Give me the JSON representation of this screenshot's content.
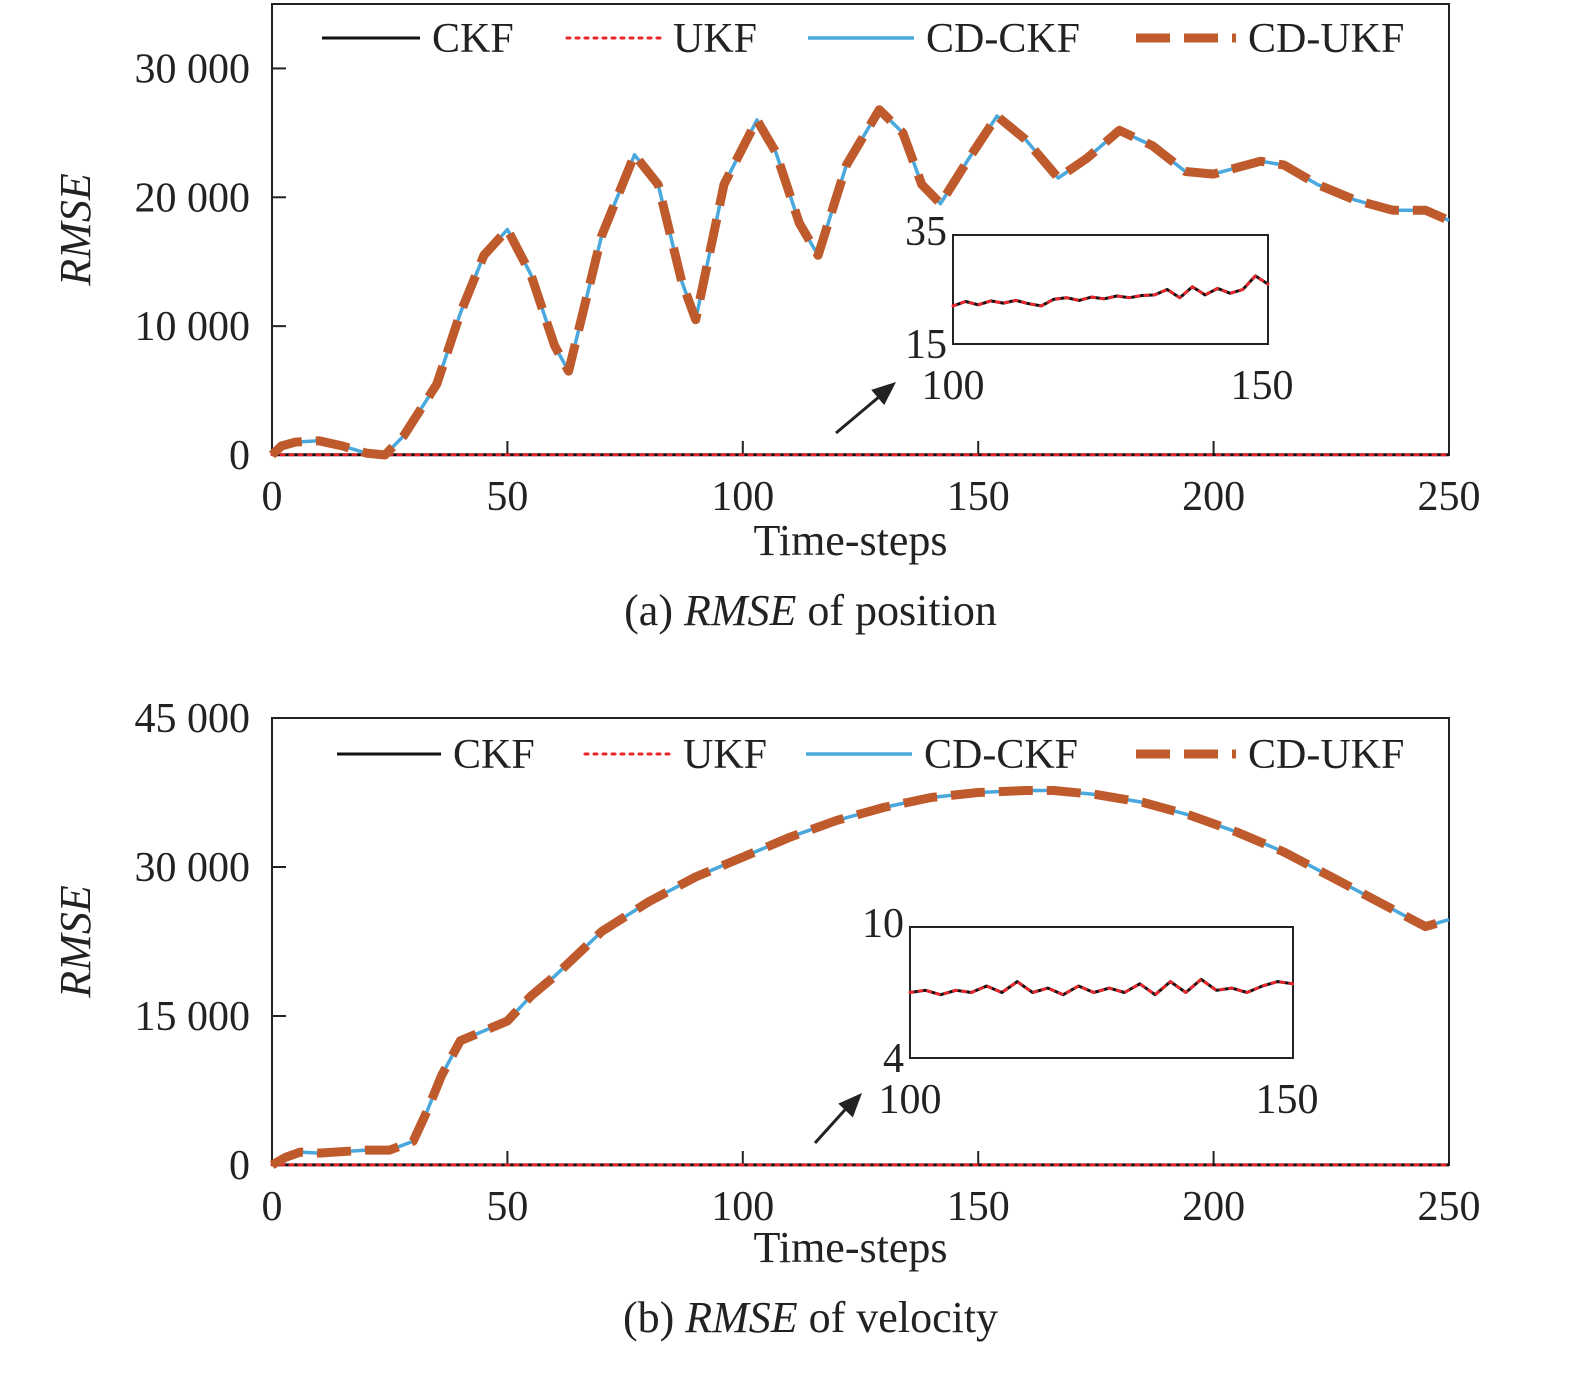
{
  "chart_data": [
    {
      "type": "line",
      "title_prefix": "(a) ",
      "title_italic": "RMSE",
      "title_suffix": " of position",
      "xlabel": "Time-steps",
      "ylabel": "RMSE",
      "xlim": [
        0,
        250
      ],
      "ylim": [
        0,
        35000
      ],
      "xticks": [
        0,
        50,
        100,
        150,
        200,
        250
      ],
      "xtick_labels": [
        "0",
        "50",
        "100",
        "150",
        "200",
        "250"
      ],
      "yticks": [
        0,
        10000,
        20000,
        30000
      ],
      "ytick_labels": [
        "0",
        "10 000",
        "20 000",
        "30 000"
      ],
      "legend": {
        "position": "top",
        "entries": [
          "CKF",
          "UKF",
          "CD-CKF",
          "CD-UKF"
        ]
      },
      "series": [
        {
          "name": "CKF",
          "color": "#111111",
          "style": "solid",
          "x": [
            0,
            50,
            100,
            150,
            200,
            250
          ],
          "y": [
            22,
            22,
            22,
            22,
            22,
            22
          ]
        },
        {
          "name": "UKF",
          "color": "#e8262c",
          "style": "dotted",
          "x": [
            0,
            50,
            100,
            150,
            200,
            250
          ],
          "y": [
            22,
            22,
            22,
            22,
            22,
            22
          ]
        },
        {
          "name": "CD-CKF",
          "color": "#4aa8dc",
          "style": "solid",
          "x": [
            0,
            2,
            5,
            10,
            15,
            20,
            24,
            28,
            35,
            40,
            45,
            50,
            55,
            60,
            63,
            70,
            77,
            82,
            87,
            90,
            96,
            103,
            107,
            112,
            116,
            122,
            129,
            134,
            138,
            142,
            148,
            154,
            160,
            167,
            173,
            180,
            187,
            194,
            200,
            205,
            210,
            215,
            222,
            230,
            238,
            245,
            250
          ],
          "y": [
            0,
            700,
            1000,
            1100,
            700,
            150,
            0,
            1500,
            5500,
            11000,
            15500,
            17500,
            14000,
            8500,
            6500,
            17000,
            23300,
            21000,
            13500,
            10500,
            21000,
            26000,
            23500,
            18000,
            15500,
            22500,
            26800,
            25000,
            21000,
            19500,
            23000,
            26300,
            24500,
            21500,
            23000,
            25200,
            24000,
            22000,
            21800,
            22300,
            22800,
            22500,
            21000,
            19800,
            19000,
            19000,
            18200
          ]
        },
        {
          "name": "CD-UKF",
          "color": "#bf5a2c",
          "style": "dashed",
          "x": [
            0,
            2,
            5,
            10,
            15,
            20,
            24,
            28,
            35,
            40,
            45,
            50,
            55,
            60,
            63,
            70,
            77,
            82,
            87,
            90,
            96,
            103,
            107,
            112,
            116,
            122,
            129,
            134,
            138,
            142,
            148,
            154,
            160,
            167,
            173,
            180,
            187,
            194,
            200,
            205,
            210,
            215,
            222,
            230,
            238,
            245,
            250
          ],
          "y": [
            0,
            700,
            1000,
            1100,
            700,
            150,
            0,
            1500,
            5500,
            11000,
            15500,
            17500,
            14000,
            8500,
            6500,
            17000,
            23300,
            21000,
            13500,
            10500,
            21000,
            26000,
            23500,
            18000,
            15500,
            22500,
            26800,
            25000,
            21000,
            19500,
            23000,
            26300,
            24500,
            21500,
            23000,
            25200,
            24000,
            22000,
            21800,
            22300,
            22800,
            22500,
            21000,
            19800,
            19000,
            19000,
            18200
          ]
        }
      ],
      "inset": {
        "xlim": [
          100,
          150
        ],
        "ylim": [
          15,
          35
        ],
        "xtick_labels": [
          "100",
          "150"
        ],
        "ytick_labels": [
          "15",
          "35"
        ],
        "series": [
          {
            "name": "CKF",
            "color": "#111111",
            "style": "solid",
            "x": [
              100,
              102,
              104,
              106,
              108,
              110,
              112,
              114,
              116,
              118,
              120,
              122,
              124,
              126,
              128,
              130,
              132,
              134,
              136,
              138,
              140,
              142,
              144,
              146,
              148,
              150
            ],
            "y": [
              22.0,
              22.8,
              22.2,
              22.9,
              22.5,
              23.0,
              22.4,
              22.0,
              23.2,
              23.5,
              23.0,
              23.6,
              23.3,
              23.8,
              23.5,
              23.9,
              24.0,
              25.0,
              23.5,
              25.5,
              24.0,
              25.2,
              24.3,
              25.0,
              27.5,
              26.0
            ]
          },
          {
            "name": "UKF",
            "color": "#e8262c",
            "style": "dotted",
            "x": [
              100,
              102,
              104,
              106,
              108,
              110,
              112,
              114,
              116,
              118,
              120,
              122,
              124,
              126,
              128,
              130,
              132,
              134,
              136,
              138,
              140,
              142,
              144,
              146,
              148,
              150
            ],
            "y": [
              22.0,
              22.8,
              22.2,
              22.9,
              22.5,
              23.0,
              22.4,
              22.0,
              23.2,
              23.5,
              23.0,
              23.6,
              23.3,
              23.8,
              23.5,
              23.9,
              24.0,
              25.0,
              23.5,
              25.5,
              24.0,
              25.2,
              24.3,
              25.0,
              27.5,
              26.0
            ]
          }
        ]
      }
    },
    {
      "type": "line",
      "title_prefix": "(b) ",
      "title_italic": "RMSE",
      "title_suffix": " of velocity",
      "xlabel": "Time-steps",
      "ylabel": "RMSE",
      "xlim": [
        0,
        250
      ],
      "ylim": [
        0,
        45000
      ],
      "xticks": [
        0,
        50,
        100,
        150,
        200,
        250
      ],
      "xtick_labels": [
        "0",
        "50",
        "100",
        "150",
        "200",
        "250"
      ],
      "yticks": [
        0,
        15000,
        30000,
        45000
      ],
      "ytick_labels": [
        "0",
        "15 000",
        "30 000",
        "45 000"
      ],
      "legend": {
        "position": "top",
        "entries": [
          "CKF",
          "UKF",
          "CD-CKF",
          "CD-UKF"
        ]
      },
      "series": [
        {
          "name": "CKF",
          "color": "#111111",
          "style": "solid",
          "x": [
            0,
            50,
            100,
            150,
            200,
            250
          ],
          "y": [
            7,
            7,
            7,
            7,
            7,
            7
          ]
        },
        {
          "name": "UKF",
          "color": "#e8262c",
          "style": "dotted",
          "x": [
            0,
            50,
            100,
            150,
            200,
            250
          ],
          "y": [
            7,
            7,
            7,
            7,
            7,
            7
          ]
        },
        {
          "name": "CD-CKF",
          "color": "#4aa8dc",
          "style": "solid",
          "x": [
            0,
            3,
            6,
            10,
            20,
            25,
            30,
            33,
            36,
            40,
            45,
            50,
            55,
            60,
            70,
            80,
            90,
            100,
            110,
            120,
            130,
            140,
            150,
            160,
            166,
            175,
            185,
            195,
            205,
            215,
            225,
            235,
            245,
            250
          ],
          "y": [
            0,
            800,
            1300,
            1200,
            1500,
            1500,
            2400,
            5500,
            9000,
            12500,
            13500,
            14500,
            17000,
            19000,
            23500,
            26500,
            29000,
            31000,
            33000,
            34700,
            36000,
            37000,
            37500,
            37700,
            37700,
            37300,
            36500,
            35200,
            33500,
            31500,
            29000,
            26500,
            24000,
            24700
          ]
        },
        {
          "name": "CD-UKF",
          "color": "#bf5a2c",
          "style": "dashed",
          "x": [
            0,
            3,
            6,
            10,
            20,
            25,
            30,
            33,
            36,
            40,
            45,
            50,
            55,
            60,
            70,
            80,
            90,
            100,
            110,
            120,
            130,
            140,
            150,
            160,
            166,
            175,
            185,
            195,
            205,
            215,
            225,
            235,
            245,
            250
          ],
          "y": [
            0,
            800,
            1300,
            1200,
            1500,
            1500,
            2400,
            5500,
            9000,
            12500,
            13500,
            14500,
            17000,
            19000,
            23500,
            26500,
            29000,
            31000,
            33000,
            34700,
            36000,
            37000,
            37500,
            37700,
            37700,
            37300,
            36500,
            35200,
            33500,
            31500,
            29000,
            26500,
            24000,
            24700
          ]
        }
      ],
      "inset": {
        "xlim": [
          100,
          150
        ],
        "ylim": [
          4,
          10
        ],
        "xtick_labels": [
          "100",
          "150"
        ],
        "ytick_labels": [
          "4",
          "10"
        ],
        "series": [
          {
            "name": "CKF",
            "color": "#111111",
            "style": "solid",
            "x": [
              100,
              102,
              104,
              106,
              108,
              110,
              112,
              114,
              116,
              118,
              120,
              122,
              124,
              126,
              128,
              130,
              132,
              134,
              136,
              138,
              140,
              142,
              144,
              146,
              148,
              150
            ],
            "y": [
              7.0,
              7.1,
              6.9,
              7.1,
              7.0,
              7.3,
              7.0,
              7.5,
              7.0,
              7.2,
              6.9,
              7.3,
              7.0,
              7.2,
              7.0,
              7.4,
              6.9,
              7.5,
              7.0,
              7.6,
              7.1,
              7.2,
              7.0,
              7.3,
              7.5,
              7.4
            ]
          },
          {
            "name": "UKF",
            "color": "#e8262c",
            "style": "dotted",
            "x": [
              100,
              102,
              104,
              106,
              108,
              110,
              112,
              114,
              116,
              118,
              120,
              122,
              124,
              126,
              128,
              130,
              132,
              134,
              136,
              138,
              140,
              142,
              144,
              146,
              148,
              150
            ],
            "y": [
              7.0,
              7.1,
              6.9,
              7.1,
              7.0,
              7.3,
              7.0,
              7.5,
              7.0,
              7.2,
              6.9,
              7.3,
              7.0,
              7.2,
              7.0,
              7.4,
              6.9,
              7.5,
              7.0,
              7.6,
              7.1,
              7.2,
              7.0,
              7.3,
              7.5,
              7.4
            ]
          }
        ]
      }
    }
  ]
}
